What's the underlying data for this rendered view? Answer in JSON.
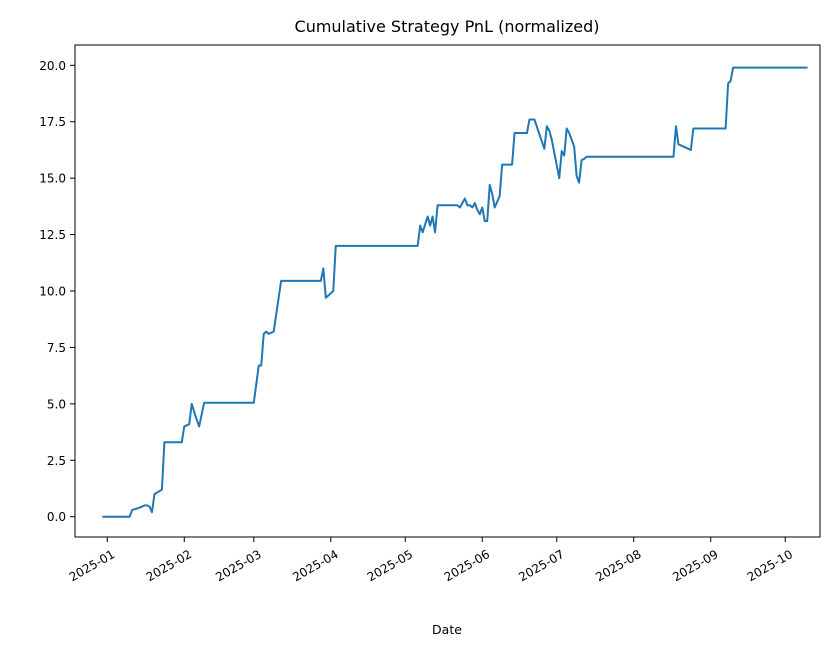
{
  "chart_data": {
    "type": "line",
    "title": "Cumulative Strategy PnL (normalized)",
    "xlabel": "Date",
    "ylabel": "",
    "ylim": [
      -0.9,
      20.9
    ],
    "xlim": [
      "2024-12-19",
      "2025-10-15"
    ],
    "grid": false,
    "legend": "none",
    "line_color": "#1f77b4",
    "x_ticks": [
      "2025-01",
      "2025-02",
      "2025-03",
      "2025-04",
      "2025-05",
      "2025-06",
      "2025-07",
      "2025-08",
      "2025-09",
      "2025-10"
    ],
    "y_ticks": [
      "0.0",
      "2.5",
      "5.0",
      "7.5",
      "10.0",
      "12.5",
      "15.0",
      "17.5",
      "20.0"
    ],
    "series": [
      {
        "x": [
          "2024-12-30",
          "2025-01-10",
          "2025-01-11",
          "2025-01-14",
          "2025-01-15",
          "2025-01-16",
          "2025-01-17",
          "2025-01-18",
          "2025-01-19",
          "2025-01-20",
          "2025-01-23",
          "2025-01-24",
          "2025-01-31",
          "2025-02-01",
          "2025-02-03",
          "2025-02-04",
          "2025-02-06",
          "2025-02-07",
          "2025-02-09",
          "2025-03-01",
          "2025-03-03",
          "2025-03-04",
          "2025-03-05",
          "2025-03-06",
          "2025-03-07",
          "2025-03-09",
          "2025-03-12",
          "2025-03-13",
          "2025-03-14",
          "2025-03-28",
          "2025-03-29",
          "2025-03-30",
          "2025-04-02",
          "2025-04-03",
          "2025-05-06",
          "2025-05-07",
          "2025-05-08",
          "2025-05-10",
          "2025-05-11",
          "2025-05-12",
          "2025-05-13",
          "2025-05-14",
          "2025-05-15",
          "2025-05-22",
          "2025-05-23",
          "2025-05-25",
          "2025-05-26",
          "2025-05-27",
          "2025-05-28",
          "2025-05-29",
          "2025-05-30",
          "2025-05-31",
          "2025-06-01",
          "2025-06-02",
          "2025-06-03",
          "2025-06-04",
          "2025-06-05",
          "2025-06-06",
          "2025-06-08",
          "2025-06-09",
          "2025-06-10",
          "2025-06-11",
          "2025-06-13",
          "2025-06-14",
          "2025-06-19",
          "2025-06-20",
          "2025-06-21",
          "2025-06-22",
          "2025-06-26",
          "2025-06-27",
          "2025-06-28",
          "2025-06-29",
          "2025-07-02",
          "2025-07-03",
          "2025-07-04",
          "2025-07-05",
          "2025-07-06",
          "2025-07-08",
          "2025-07-09",
          "2025-07-10",
          "2025-07-11",
          "2025-07-12",
          "2025-07-13",
          "2025-07-16",
          "2025-07-17",
          "2025-07-20",
          "2025-08-17",
          "2025-08-18",
          "2025-08-19",
          "2025-08-23",
          "2025-08-24",
          "2025-08-25",
          "2025-09-07",
          "2025-09-08",
          "2025-09-09",
          "2025-09-10",
          "2025-10-10"
        ],
        "y": [
          0.0,
          0.0,
          0.3,
          0.4,
          0.45,
          0.5,
          0.5,
          0.45,
          0.2,
          1.0,
          1.2,
          3.3,
          3.3,
          4.0,
          4.1,
          5.0,
          4.3,
          4.0,
          5.05,
          5.05,
          6.7,
          6.7,
          8.1,
          8.2,
          8.1,
          8.2,
          10.45,
          10.45,
          10.45,
          10.45,
          11.0,
          9.7,
          10.0,
          12.0,
          12.0,
          12.9,
          12.6,
          13.3,
          12.9,
          13.3,
          12.6,
          13.8,
          13.8,
          13.8,
          13.7,
          14.1,
          13.8,
          13.8,
          13.7,
          13.9,
          13.6,
          13.4,
          13.7,
          13.1,
          13.1,
          14.7,
          14.3,
          13.7,
          14.2,
          15.6,
          15.6,
          15.6,
          15.6,
          17.0,
          17.0,
          17.6,
          17.6,
          17.6,
          16.3,
          17.3,
          17.1,
          16.7,
          15.0,
          16.2,
          16.0,
          17.2,
          17.0,
          16.4,
          15.1,
          14.8,
          15.8,
          15.85,
          15.95,
          15.95,
          15.95,
          15.95,
          15.95,
          17.3,
          16.5,
          16.3,
          16.25,
          17.2,
          17.2,
          19.2,
          19.3,
          19.9,
          19.9
        ]
      }
    ]
  }
}
